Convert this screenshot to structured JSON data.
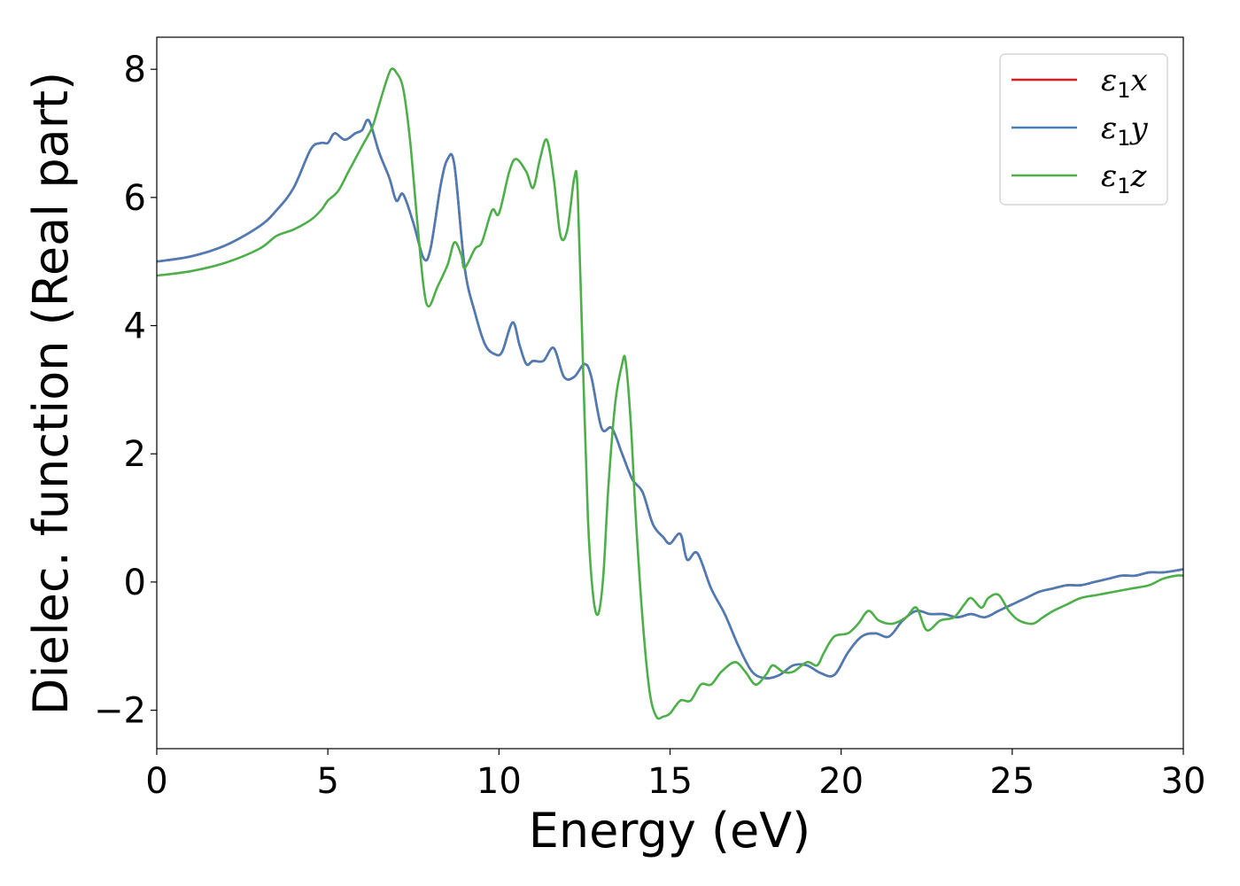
{
  "chart_data": {
    "type": "line",
    "xlabel": "Energy (eV)",
    "ylabel": "Dielec. function (Real part)",
    "xlim": [
      0,
      30
    ],
    "ylim": [
      -2.6,
      8.5
    ],
    "xticks": [
      0,
      5,
      10,
      15,
      20,
      25,
      30
    ],
    "yticks": [
      -2,
      0,
      2,
      4,
      6,
      8
    ],
    "xtick_labels": [
      "0",
      "5",
      "10",
      "15",
      "20",
      "25",
      "30"
    ],
    "ytick_labels": [
      "−2",
      "0",
      "2",
      "4",
      "6",
      "8"
    ],
    "grid": false,
    "legend_position": "top-right",
    "series": [
      {
        "name": "ε1x",
        "legend_base": "ε",
        "legend_sub": "1",
        "legend_var": "x",
        "color": "#e41a1c",
        "x": [
          0,
          1,
          2,
          3,
          3.5,
          4,
          4.5,
          4.8,
          5.0,
          5.2,
          5.5,
          5.8,
          6.0,
          6.2,
          6.5,
          6.8,
          7.0,
          7.2,
          7.5,
          7.8,
          8.0,
          8.3,
          8.5,
          8.7,
          9.0,
          9.3,
          9.6,
          9.9,
          10.1,
          10.4,
          10.6,
          10.8,
          11.0,
          11.3,
          11.6,
          11.9,
          12.2,
          12.5,
          12.7,
          13.0,
          13.3,
          13.6,
          13.9,
          14.2,
          14.5,
          14.8,
          15.0,
          15.3,
          15.5,
          15.8,
          16.2,
          16.6,
          17.0,
          17.4,
          17.8,
          18.2,
          18.6,
          19.0,
          19.4,
          19.8,
          20.2,
          20.6,
          21.0,
          21.4,
          21.8,
          22.2,
          22.6,
          23.0,
          23.4,
          23.8,
          24.2,
          24.6,
          25.0,
          25.4,
          25.8,
          26.2,
          26.6,
          27.0,
          27.4,
          27.8,
          28.2,
          28.6,
          29.0,
          29.4,
          29.8,
          30.0
        ],
        "y": [
          5.0,
          5.08,
          5.25,
          5.55,
          5.8,
          6.15,
          6.75,
          6.85,
          6.85,
          7.0,
          6.9,
          7.0,
          7.05,
          7.2,
          6.7,
          6.3,
          5.95,
          6.05,
          5.6,
          5.05,
          5.2,
          6.2,
          6.6,
          6.5,
          4.9,
          4.2,
          3.7,
          3.55,
          3.6,
          4.05,
          3.7,
          3.4,
          3.45,
          3.45,
          3.65,
          3.2,
          3.2,
          3.4,
          3.2,
          2.4,
          2.4,
          2.0,
          1.6,
          1.4,
          0.9,
          0.7,
          0.6,
          0.75,
          0.35,
          0.45,
          -0.1,
          -0.5,
          -1.0,
          -1.4,
          -1.5,
          -1.45,
          -1.3,
          -1.3,
          -1.42,
          -1.45,
          -1.1,
          -0.85,
          -0.8,
          -0.85,
          -0.6,
          -0.45,
          -0.5,
          -0.5,
          -0.55,
          -0.5,
          -0.55,
          -0.45,
          -0.35,
          -0.25,
          -0.15,
          -0.1,
          -0.05,
          -0.05,
          0.0,
          0.05,
          0.1,
          0.1,
          0.15,
          0.15,
          0.18,
          0.2
        ]
      },
      {
        "name": "ε1y",
        "legend_base": "ε",
        "legend_sub": "1",
        "legend_var": "y",
        "color": "#4a7cb5",
        "x": [
          0,
          1,
          2,
          3,
          3.5,
          4,
          4.5,
          4.8,
          5.0,
          5.2,
          5.5,
          5.8,
          6.0,
          6.2,
          6.5,
          6.8,
          7.0,
          7.2,
          7.5,
          7.8,
          8.0,
          8.3,
          8.5,
          8.7,
          9.0,
          9.3,
          9.6,
          9.9,
          10.1,
          10.4,
          10.6,
          10.8,
          11.0,
          11.3,
          11.6,
          11.9,
          12.2,
          12.5,
          12.7,
          13.0,
          13.3,
          13.6,
          13.9,
          14.2,
          14.5,
          14.8,
          15.0,
          15.3,
          15.5,
          15.8,
          16.2,
          16.6,
          17.0,
          17.4,
          17.8,
          18.2,
          18.6,
          19.0,
          19.4,
          19.8,
          20.2,
          20.6,
          21.0,
          21.4,
          21.8,
          22.2,
          22.6,
          23.0,
          23.4,
          23.8,
          24.2,
          24.6,
          25.0,
          25.4,
          25.8,
          26.2,
          26.6,
          27.0,
          27.4,
          27.8,
          28.2,
          28.6,
          29.0,
          29.4,
          29.8,
          30.0
        ],
        "y": [
          5.0,
          5.08,
          5.25,
          5.55,
          5.8,
          6.15,
          6.75,
          6.85,
          6.85,
          7.0,
          6.9,
          7.0,
          7.05,
          7.2,
          6.7,
          6.3,
          5.95,
          6.05,
          5.6,
          5.05,
          5.2,
          6.2,
          6.6,
          6.5,
          4.9,
          4.2,
          3.7,
          3.55,
          3.6,
          4.05,
          3.7,
          3.4,
          3.45,
          3.45,
          3.65,
          3.2,
          3.2,
          3.4,
          3.2,
          2.4,
          2.4,
          2.0,
          1.6,
          1.4,
          0.9,
          0.7,
          0.6,
          0.75,
          0.35,
          0.45,
          -0.1,
          -0.5,
          -1.0,
          -1.4,
          -1.5,
          -1.45,
          -1.3,
          -1.3,
          -1.42,
          -1.45,
          -1.1,
          -0.85,
          -0.8,
          -0.85,
          -0.6,
          -0.45,
          -0.5,
          -0.5,
          -0.55,
          -0.5,
          -0.55,
          -0.45,
          -0.35,
          -0.25,
          -0.15,
          -0.1,
          -0.05,
          -0.05,
          0.0,
          0.05,
          0.1,
          0.1,
          0.15,
          0.15,
          0.18,
          0.2
        ]
      },
      {
        "name": "ε1z",
        "legend_base": "ε",
        "legend_sub": "1",
        "legend_var": "z",
        "color": "#4daf4a",
        "x": [
          0,
          1,
          2,
          3,
          3.5,
          4,
          4.5,
          4.8,
          5.0,
          5.3,
          5.6,
          6.0,
          6.3,
          6.5,
          6.7,
          6.85,
          7.0,
          7.2,
          7.4,
          7.6,
          7.8,
          7.95,
          8.2,
          8.5,
          8.7,
          8.9,
          9.0,
          9.3,
          9.5,
          9.8,
          10.0,
          10.3,
          10.5,
          10.8,
          11.0,
          11.2,
          11.4,
          11.6,
          11.8,
          12.0,
          12.2,
          12.3,
          12.45,
          12.6,
          12.75,
          12.9,
          13.05,
          13.2,
          13.4,
          13.6,
          13.7,
          13.85,
          14.0,
          14.2,
          14.4,
          14.6,
          14.8,
          15.0,
          15.3,
          15.6,
          15.9,
          16.2,
          16.5,
          16.9,
          17.2,
          17.5,
          17.8,
          18.0,
          18.3,
          18.6,
          19.0,
          19.3,
          19.5,
          19.8,
          20.2,
          20.5,
          20.8,
          21.1,
          21.5,
          21.9,
          22.2,
          22.5,
          22.9,
          23.3,
          23.6,
          23.8,
          24.1,
          24.3,
          24.6,
          24.9,
          25.2,
          25.6,
          25.9,
          26.2,
          26.6,
          27.0,
          27.5,
          28.0,
          28.5,
          29.0,
          29.4,
          29.8,
          30.0
        ],
        "y": [
          4.78,
          4.85,
          4.98,
          5.2,
          5.4,
          5.5,
          5.65,
          5.8,
          5.95,
          6.1,
          6.4,
          6.8,
          7.1,
          7.45,
          7.8,
          8.0,
          7.95,
          7.7,
          6.9,
          5.7,
          4.6,
          4.3,
          4.6,
          4.95,
          5.3,
          5.1,
          4.9,
          5.2,
          5.3,
          5.8,
          5.75,
          6.4,
          6.6,
          6.4,
          6.15,
          6.6,
          6.9,
          6.3,
          5.4,
          5.5,
          6.3,
          6.1,
          3.5,
          1.0,
          -0.2,
          -0.5,
          0.1,
          1.5,
          2.8,
          3.4,
          3.45,
          2.5,
          1.0,
          -0.6,
          -1.7,
          -2.1,
          -2.1,
          -2.05,
          -1.85,
          -1.85,
          -1.6,
          -1.6,
          -1.4,
          -1.25,
          -1.4,
          -1.6,
          -1.45,
          -1.3,
          -1.4,
          -1.4,
          -1.25,
          -1.3,
          -1.1,
          -0.85,
          -0.8,
          -0.65,
          -0.45,
          -0.6,
          -0.65,
          -0.55,
          -0.4,
          -0.75,
          -0.6,
          -0.55,
          -0.35,
          -0.25,
          -0.4,
          -0.25,
          -0.2,
          -0.45,
          -0.6,
          -0.65,
          -0.55,
          -0.45,
          -0.35,
          -0.25,
          -0.2,
          -0.15,
          -0.1,
          -0.05,
          0.05,
          0.1,
          0.1
        ]
      }
    ]
  }
}
